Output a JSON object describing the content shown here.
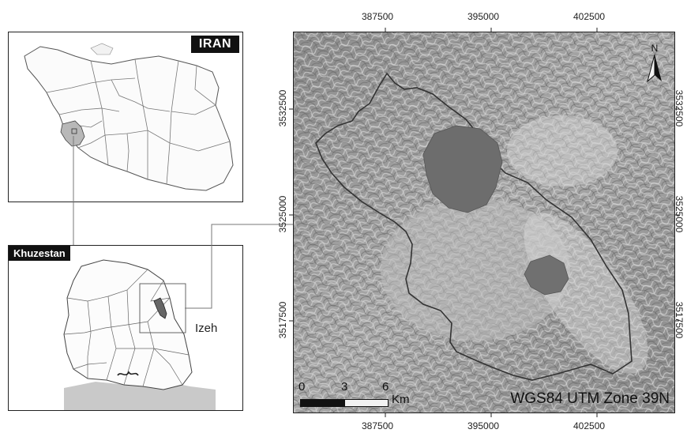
{
  "inset_iran": {
    "title": "IRAN"
  },
  "inset_province": {
    "title": "Khuzestan",
    "city_label": "Izeh"
  },
  "main_map": {
    "x_ticks": [
      "387500",
      "395000",
      "402500"
    ],
    "y_ticks": [
      "3532500",
      "3525000",
      "3517500"
    ],
    "north_label": "N",
    "scale": {
      "labels": [
        "0",
        "3",
        "6"
      ],
      "unit": "Km"
    },
    "projection": "WGS84 UTM Zone 39N"
  }
}
